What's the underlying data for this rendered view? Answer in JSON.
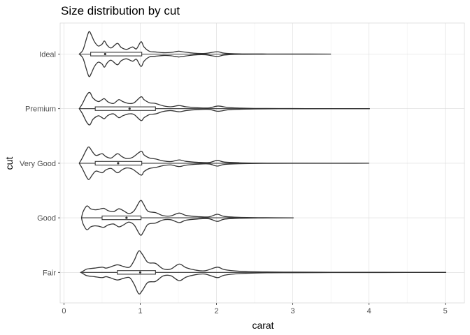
{
  "chart_data": {
    "type": "violin",
    "orientation": "horizontal",
    "title": "Size distribution by cut",
    "xlabel": "carat",
    "ylabel": "cut",
    "xlim": [
      -0.05,
      5.25
    ],
    "x_ticks": [
      0,
      1,
      2,
      3,
      4,
      5
    ],
    "x_tick_labels": [
      "0",
      "1",
      "2",
      "3",
      "4",
      "5"
    ],
    "grid": true,
    "categories": [
      "Ideal",
      "Premium",
      "Very Good",
      "Good",
      "Fair"
    ],
    "series": [
      {
        "category": "Ideal",
        "min": 0.2,
        "q1": 0.35,
        "median": 0.54,
        "q3": 1.02,
        "max": 3.5,
        "density": [
          [
            0.2,
            0.0
          ],
          [
            0.25,
            0.18
          ],
          [
            0.3,
            0.7
          ],
          [
            0.33,
            0.95
          ],
          [
            0.36,
            0.8
          ],
          [
            0.4,
            0.52
          ],
          [
            0.45,
            0.34
          ],
          [
            0.5,
            0.42
          ],
          [
            0.53,
            0.55
          ],
          [
            0.57,
            0.36
          ],
          [
            0.62,
            0.26
          ],
          [
            0.7,
            0.45
          ],
          [
            0.75,
            0.28
          ],
          [
            0.82,
            0.2
          ],
          [
            0.9,
            0.3
          ],
          [
            0.95,
            0.22
          ],
          [
            1.01,
            0.52
          ],
          [
            1.05,
            0.3
          ],
          [
            1.12,
            0.12
          ],
          [
            1.2,
            0.09
          ],
          [
            1.3,
            0.06
          ],
          [
            1.4,
            0.07
          ],
          [
            1.5,
            0.12
          ],
          [
            1.55,
            0.1
          ],
          [
            1.7,
            0.04
          ],
          [
            1.85,
            0.03
          ],
          [
            2.01,
            0.1
          ],
          [
            2.1,
            0.04
          ],
          [
            2.3,
            0.01
          ],
          [
            2.6,
            0.005
          ],
          [
            3.0,
            0.003
          ],
          [
            3.5,
            0.0
          ]
        ]
      },
      {
        "category": "Premium",
        "min": 0.2,
        "q1": 0.41,
        "median": 0.86,
        "q3": 1.2,
        "max": 4.01,
        "density": [
          [
            0.2,
            0.0
          ],
          [
            0.24,
            0.2
          ],
          [
            0.3,
            0.58
          ],
          [
            0.34,
            0.68
          ],
          [
            0.38,
            0.45
          ],
          [
            0.45,
            0.3
          ],
          [
            0.5,
            0.38
          ],
          [
            0.53,
            0.42
          ],
          [
            0.58,
            0.28
          ],
          [
            0.65,
            0.22
          ],
          [
            0.72,
            0.38
          ],
          [
            0.77,
            0.3
          ],
          [
            0.85,
            0.22
          ],
          [
            0.92,
            0.25
          ],
          [
            1.01,
            0.5
          ],
          [
            1.05,
            0.38
          ],
          [
            1.12,
            0.25
          ],
          [
            1.2,
            0.22
          ],
          [
            1.3,
            0.12
          ],
          [
            1.4,
            0.08
          ],
          [
            1.51,
            0.13
          ],
          [
            1.6,
            0.08
          ],
          [
            1.75,
            0.04
          ],
          [
            1.9,
            0.03
          ],
          [
            2.02,
            0.11
          ],
          [
            2.15,
            0.05
          ],
          [
            2.3,
            0.025
          ],
          [
            2.5,
            0.01
          ],
          [
            3.0,
            0.004
          ],
          [
            3.5,
            0.002
          ],
          [
            4.01,
            0.0
          ]
        ]
      },
      {
        "category": "Very Good",
        "min": 0.2,
        "q1": 0.41,
        "median": 0.71,
        "q3": 1.02,
        "max": 4.0,
        "density": [
          [
            0.2,
            0.0
          ],
          [
            0.24,
            0.22
          ],
          [
            0.3,
            0.6
          ],
          [
            0.33,
            0.68
          ],
          [
            0.37,
            0.5
          ],
          [
            0.42,
            0.33
          ],
          [
            0.5,
            0.4
          ],
          [
            0.55,
            0.28
          ],
          [
            0.62,
            0.22
          ],
          [
            0.7,
            0.4
          ],
          [
            0.76,
            0.28
          ],
          [
            0.82,
            0.2
          ],
          [
            0.9,
            0.25
          ],
          [
            1.01,
            0.5
          ],
          [
            1.05,
            0.35
          ],
          [
            1.12,
            0.22
          ],
          [
            1.2,
            0.18
          ],
          [
            1.3,
            0.1
          ],
          [
            1.4,
            0.07
          ],
          [
            1.51,
            0.14
          ],
          [
            1.6,
            0.08
          ],
          [
            1.75,
            0.04
          ],
          [
            1.9,
            0.03
          ],
          [
            2.01,
            0.12
          ],
          [
            2.1,
            0.05
          ],
          [
            2.3,
            0.02
          ],
          [
            2.6,
            0.006
          ],
          [
            3.0,
            0.003
          ],
          [
            4.0,
            0.0
          ]
        ]
      },
      {
        "category": "Good",
        "min": 0.23,
        "q1": 0.5,
        "median": 0.82,
        "q3": 1.01,
        "max": 3.01,
        "density": [
          [
            0.23,
            0.0
          ],
          [
            0.25,
            0.25
          ],
          [
            0.3,
            0.5
          ],
          [
            0.35,
            0.38
          ],
          [
            0.4,
            0.34
          ],
          [
            0.45,
            0.35
          ],
          [
            0.52,
            0.4
          ],
          [
            0.58,
            0.3
          ],
          [
            0.65,
            0.26
          ],
          [
            0.72,
            0.38
          ],
          [
            0.78,
            0.3
          ],
          [
            0.85,
            0.18
          ],
          [
            0.92,
            0.3
          ],
          [
            1.0,
            0.72
          ],
          [
            1.04,
            0.6
          ],
          [
            1.1,
            0.28
          ],
          [
            1.2,
            0.22
          ],
          [
            1.3,
            0.09
          ],
          [
            1.4,
            0.08
          ],
          [
            1.51,
            0.2
          ],
          [
            1.6,
            0.1
          ],
          [
            1.75,
            0.05
          ],
          [
            1.9,
            0.04
          ],
          [
            2.01,
            0.15
          ],
          [
            2.1,
            0.06
          ],
          [
            2.3,
            0.02
          ],
          [
            2.6,
            0.006
          ],
          [
            3.01,
            0.0
          ]
        ]
      },
      {
        "category": "Fair",
        "min": 0.22,
        "q1": 0.7,
        "median": 1.0,
        "q3": 1.2,
        "max": 5.01,
        "density": [
          [
            0.22,
            0.0
          ],
          [
            0.25,
            0.05
          ],
          [
            0.3,
            0.14
          ],
          [
            0.4,
            0.18
          ],
          [
            0.5,
            0.22
          ],
          [
            0.55,
            0.18
          ],
          [
            0.6,
            0.22
          ],
          [
            0.7,
            0.32
          ],
          [
            0.78,
            0.25
          ],
          [
            0.86,
            0.22
          ],
          [
            0.92,
            0.5
          ],
          [
            0.98,
            0.9
          ],
          [
            1.03,
            0.75
          ],
          [
            1.1,
            0.42
          ],
          [
            1.2,
            0.38
          ],
          [
            1.3,
            0.15
          ],
          [
            1.4,
            0.14
          ],
          [
            1.51,
            0.35
          ],
          [
            1.6,
            0.2
          ],
          [
            1.72,
            0.1
          ],
          [
            1.85,
            0.07
          ],
          [
            2.01,
            0.22
          ],
          [
            2.1,
            0.12
          ],
          [
            2.3,
            0.05
          ],
          [
            2.6,
            0.02
          ],
          [
            3.0,
            0.012
          ],
          [
            3.5,
            0.006
          ],
          [
            4.0,
            0.004
          ],
          [
            4.5,
            0.002
          ],
          [
            5.01,
            0.0
          ]
        ]
      }
    ]
  }
}
